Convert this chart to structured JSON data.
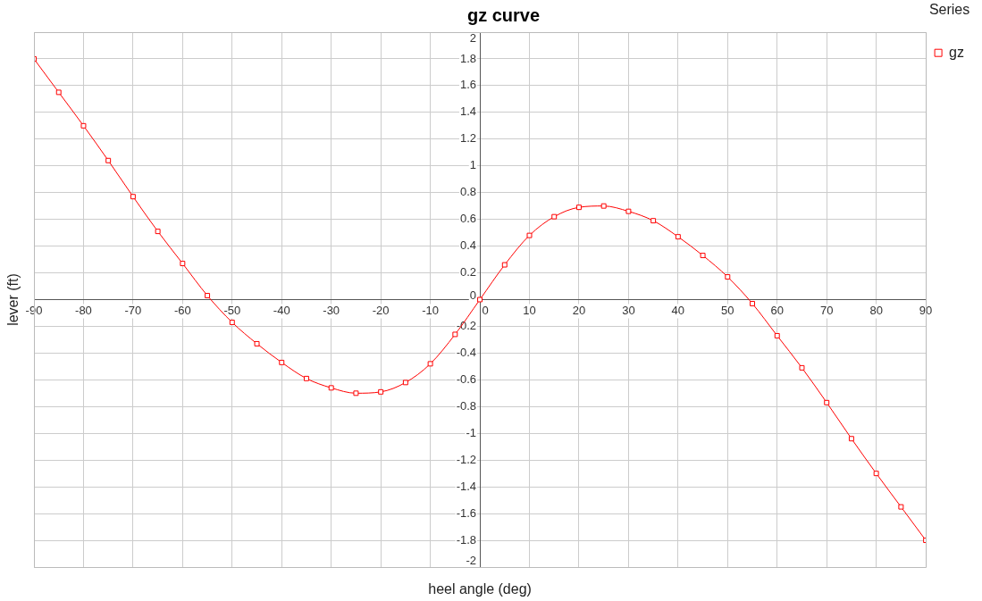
{
  "chart_data": {
    "type": "line",
    "title": "gz curve",
    "xlabel": "heel angle (deg)",
    "ylabel": "lever (ft)",
    "legend_title": "Series",
    "legend": "top right",
    "grid": true,
    "marker": "square",
    "line_style": "solid",
    "x": [
      -90,
      -85,
      -80,
      -75,
      -70,
      -65,
      -60,
      -55,
      -50,
      -45,
      -40,
      -35,
      -30,
      -25,
      -20,
      -15,
      -10,
      -5,
      0,
      5,
      10,
      15,
      20,
      25,
      30,
      35,
      40,
      45,
      50,
      55,
      60,
      65,
      70,
      75,
      80,
      85,
      90
    ],
    "series": [
      {
        "name": "gz",
        "color": "#ff0000",
        "values": [
          1.8,
          1.55,
          1.3,
          1.04,
          0.77,
          0.51,
          0.27,
          0.03,
          -0.17,
          -0.33,
          -0.47,
          -0.59,
          -0.66,
          -0.7,
          -0.69,
          -0.62,
          -0.48,
          -0.26,
          0,
          0.26,
          0.48,
          0.62,
          0.69,
          0.7,
          0.66,
          0.59,
          0.47,
          0.33,
          0.17,
          -0.03,
          -0.27,
          -0.51,
          -0.77,
          -1.04,
          -1.3,
          -1.55,
          -1.8
        ]
      }
    ],
    "xlim": [
      -90,
      90
    ],
    "xticks": [
      -90,
      -80,
      -70,
      -60,
      -50,
      -40,
      -30,
      -20,
      -10,
      0,
      10,
      20,
      30,
      40,
      50,
      60,
      70,
      80,
      90
    ],
    "ylim": [
      -2,
      2
    ],
    "yticks": [
      -2,
      -1.8,
      -1.6,
      -1.4,
      -1.2,
      -1,
      -0.8,
      -0.6,
      -0.4,
      -0.2,
      0,
      0.2,
      0.4,
      0.6,
      0.8,
      1,
      1.2,
      1.4,
      1.6,
      1.8,
      2
    ]
  }
}
